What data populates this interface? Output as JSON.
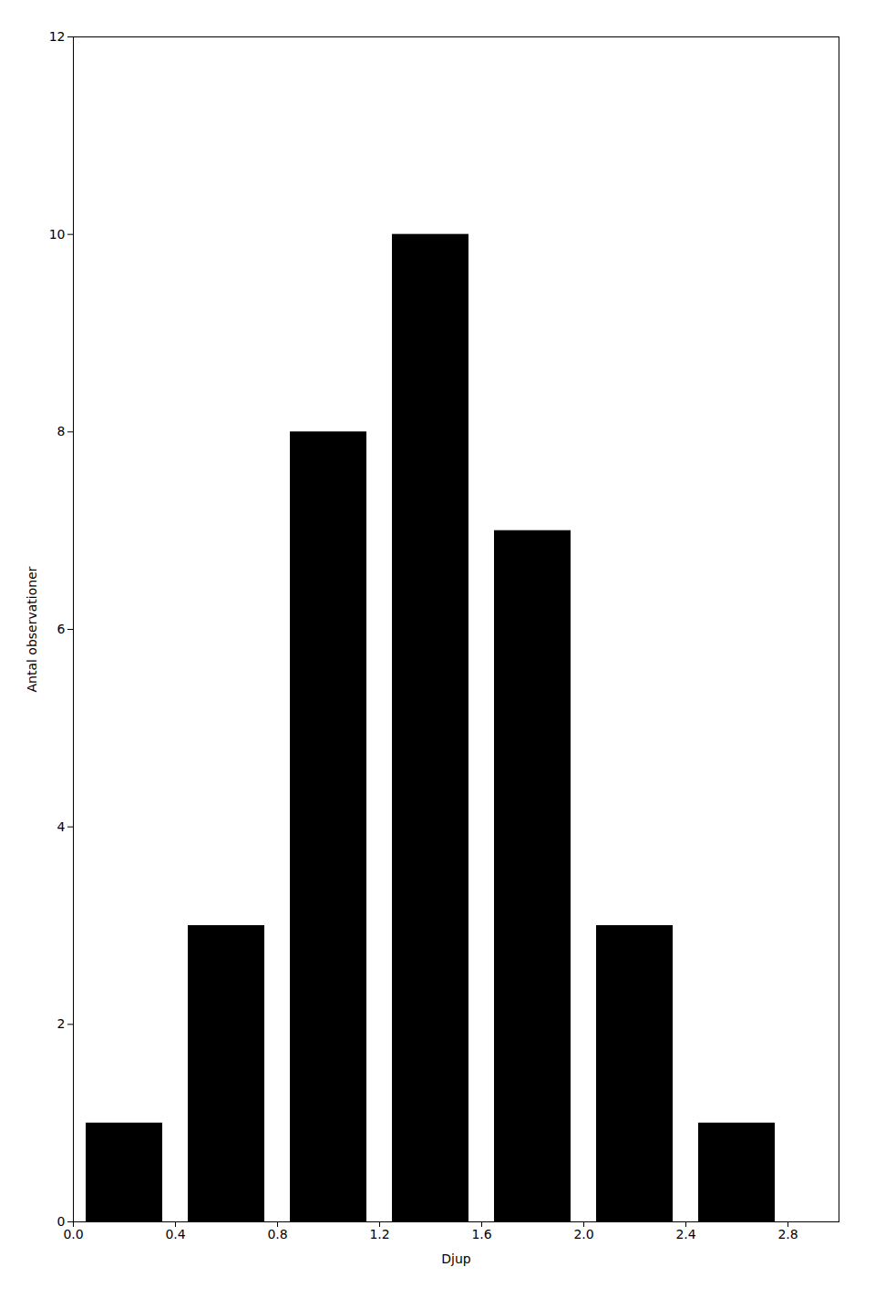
{
  "chart_data": {
    "type": "bar",
    "x_label": "Djup",
    "y_label": "Antal observationer",
    "x": [
      0.2,
      0.6,
      1.0,
      1.4,
      1.8,
      2.2,
      2.6
    ],
    "values": [
      1,
      3,
      8,
      10,
      7,
      3,
      1
    ],
    "xlim": [
      0,
      3.0
    ],
    "xticks": [
      {
        "value": 0,
        "label": "0.0"
      },
      0.4,
      0.8,
      1.2,
      1.6,
      {
        "value": 2,
        "label": "2.0"
      },
      2.4,
      2.8
    ],
    "ylim": [
      0,
      12
    ],
    "yticks": [
      0,
      2,
      4,
      6,
      8,
      10,
      12
    ],
    "grid": false
  }
}
